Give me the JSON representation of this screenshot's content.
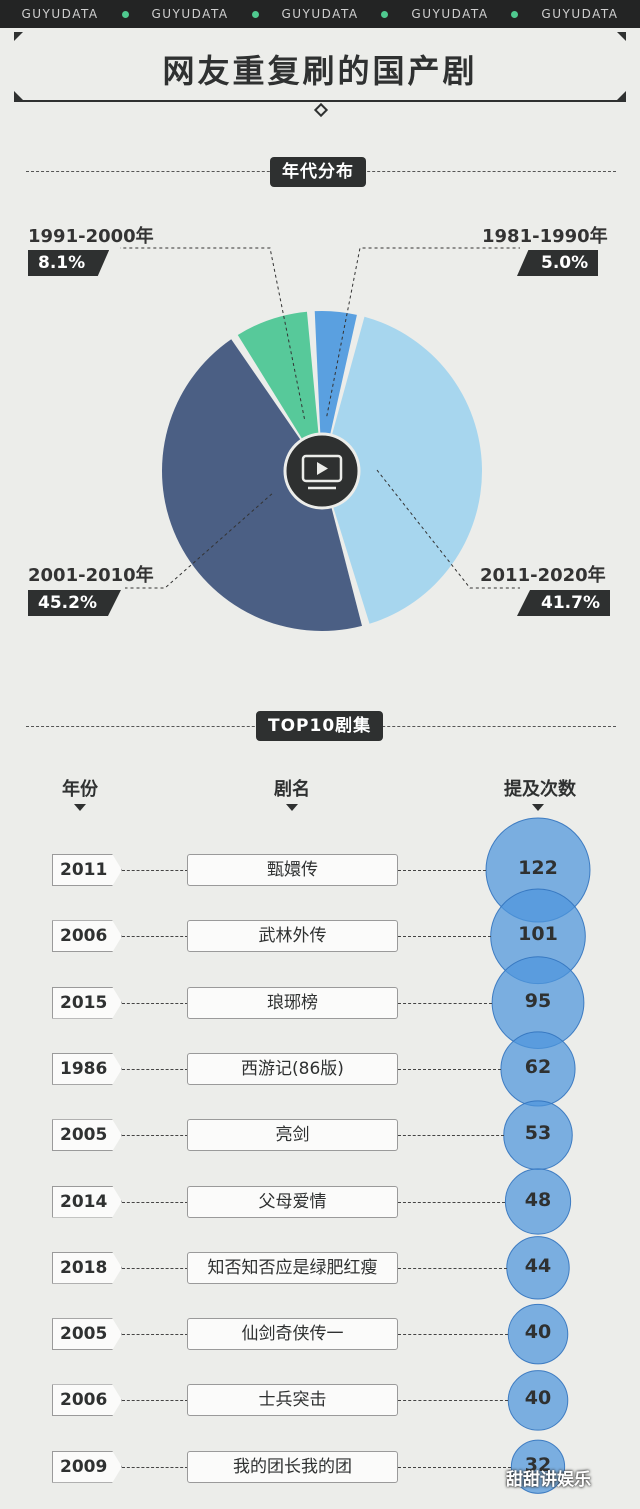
{
  "header": {
    "brand_items": [
      "GUYUDATA",
      "GUYUDATA",
      "GUYUDATA",
      "GUYUDATA",
      "GUYUDATA"
    ],
    "title": "网友重复刷的国产剧"
  },
  "sections": {
    "era": "年代分布",
    "top10": "TOP10剧集"
  },
  "table_headers": {
    "year": "年份",
    "name": "剧名",
    "count": "提及次数"
  },
  "watermark": "甜甜讲娱乐",
  "colors": {
    "accent": "#4fc98f",
    "bubble": "#4e96dd",
    "dark": "#2e3030"
  },
  "chart_data": [
    {
      "type": "pie",
      "title": "年代分布",
      "center_icon": "tv-icon",
      "slices": [
        {
          "label": "1981-1990年",
          "value": 5.0,
          "pct_label": "5.0%",
          "color": "#5aa0e0"
        },
        {
          "label": "2011-2020年",
          "value": 41.7,
          "pct_label": "41.7%",
          "color": "#a7d6ee"
        },
        {
          "label": "2001-2010年",
          "value": 45.2,
          "pct_label": "45.2%",
          "color": "#4b5f84"
        },
        {
          "label": "1991-2000年",
          "value": 8.1,
          "pct_label": "8.1%",
          "color": "#57c99a"
        }
      ]
    },
    {
      "type": "table",
      "title": "TOP10剧集",
      "columns": [
        "年份",
        "剧名",
        "提及次数"
      ],
      "rows": [
        {
          "year": "2011",
          "name": "甄嬛传",
          "count": 122
        },
        {
          "year": "2006",
          "name": "武林外传",
          "count": 101
        },
        {
          "year": "2015",
          "name": "琅琊榜",
          "count": 95
        },
        {
          "year": "1986",
          "name": "西游记(86版)",
          "count": 62
        },
        {
          "year": "2005",
          "name": "亮剑",
          "count": 53
        },
        {
          "year": "2014",
          "name": "父母爱情",
          "count": 48
        },
        {
          "year": "2018",
          "name": "知否知否应是绿肥红瘦",
          "count": 44
        },
        {
          "year": "2005",
          "name": "仙剑奇侠传一",
          "count": 40
        },
        {
          "year": "2006",
          "name": "士兵突击",
          "count": 40
        },
        {
          "year": "2009",
          "name": "我的团长我的团",
          "count": 32
        }
      ]
    }
  ]
}
